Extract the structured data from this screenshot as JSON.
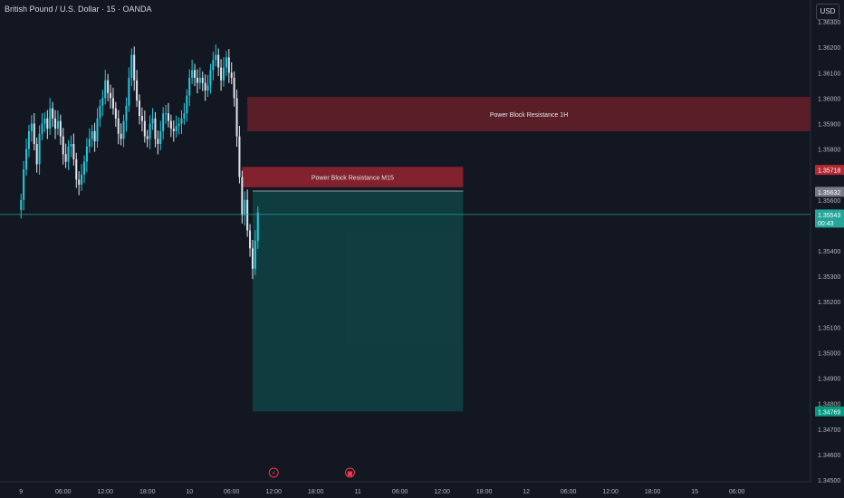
{
  "header": {
    "title": "British Pound / U.S. Dollar · 15 · OANDA",
    "currency": "USD"
  },
  "colors": {
    "background": "#131722",
    "up": "#26c6da",
    "down": "#e0e3eb",
    "resistance_zone": "#b22833",
    "target_zone": "#0e4a4a",
    "price_line": "#26a69a",
    "axis_text": "#b2b5be"
  },
  "chart_data": {
    "type": "candlestick",
    "symbol": "GBPUSD",
    "timeframe": "15",
    "ylim": [
      1.345,
      1.3635
    ],
    "y_ticks": [
      "1.36300",
      "1.36200",
      "1.36100",
      "1.36000",
      "1.35900",
      "1.35800",
      "1.35600",
      "1.35400",
      "1.35300",
      "1.35200",
      "1.35100",
      "1.35000",
      "1.34900",
      "1.34800",
      "1.34700",
      "1.34600",
      "1.34500",
      "1.34400"
    ],
    "x_ticks": [
      "9",
      "06:00",
      "12:00",
      "18:00",
      "10",
      "06:00",
      "12:00",
      "18:00",
      "11",
      "06:00",
      "12:00",
      "18:00",
      "12",
      "06:00",
      "12:00",
      "18:00",
      "15",
      "06:00"
    ],
    "x_range": [
      -8,
      300
    ],
    "x_tick_index": [
      0,
      16,
      32,
      48,
      64,
      80,
      96,
      112,
      128,
      144,
      160,
      176,
      192,
      208,
      224,
      240,
      256,
      272
    ],
    "closes": [
      1.356,
      1.3572,
      1.358,
      1.3587,
      1.359,
      1.3582,
      1.3574,
      1.3586,
      1.359,
      1.3592,
      1.3588,
      1.3596,
      1.3592,
      1.3588,
      1.3591,
      1.3585,
      1.3578,
      1.3575,
      1.3581,
      1.3582,
      1.3576,
      1.3568,
      1.3566,
      1.357,
      1.3575,
      1.3581,
      1.3584,
      1.3587,
      1.3583,
      1.3592,
      1.3597,
      1.36,
      1.3607,
      1.3602,
      1.36,
      1.3596,
      1.3592,
      1.3586,
      1.3584,
      1.3591,
      1.3597,
      1.3608,
      1.3617,
      1.3607,
      1.3599,
      1.3593,
      1.3591,
      1.3585,
      1.3584,
      1.359,
      1.3592,
      1.3584,
      1.3582,
      1.3587,
      1.3594,
      1.3594,
      1.3591,
      1.3588,
      1.3587,
      1.3589,
      1.359,
      1.3592,
      1.3594,
      1.3601,
      1.3608,
      1.3611,
      1.3608,
      1.3606,
      1.3608,
      1.3606,
      1.3603,
      1.3605,
      1.3611,
      1.3615,
      1.3617,
      1.3612,
      1.3607,
      1.3612,
      1.3616,
      1.361,
      1.3608,
      1.36,
      1.3585,
      1.3569,
      1.3554,
      1.356,
      1.3548,
      1.3541,
      1.3533,
      1.3544,
      1.3555
    ],
    "annotations": [
      {
        "label": "Power Block Resistance  1H",
        "type": "zone",
        "y_top": 1.36005,
        "y_bottom": 1.3587,
        "x_start": 86,
        "x_end": 300
      },
      {
        "label": "Power Block Resistance  M15",
        "type": "zone",
        "y_top": 1.3573,
        "y_bottom": 1.3565,
        "x_start": 84,
        "x_end": 168
      },
      {
        "label": "",
        "type": "target",
        "y_top": 1.35635,
        "y_bottom": 1.34769,
        "x_start": 88,
        "x_end": 168
      }
    ],
    "price_labels": [
      {
        "value": "1.35718",
        "kind": "red"
      },
      {
        "value": "1.35632",
        "kind": "gray"
      },
      {
        "value": "1.35543",
        "countdown": "00:43",
        "kind": "current"
      },
      {
        "value": "1.34769",
        "kind": "green"
      }
    ],
    "markers": [
      {
        "name": "lightning-icon",
        "x_index": 96
      },
      {
        "name": "flag-event-icon",
        "x_index": 125
      }
    ]
  }
}
